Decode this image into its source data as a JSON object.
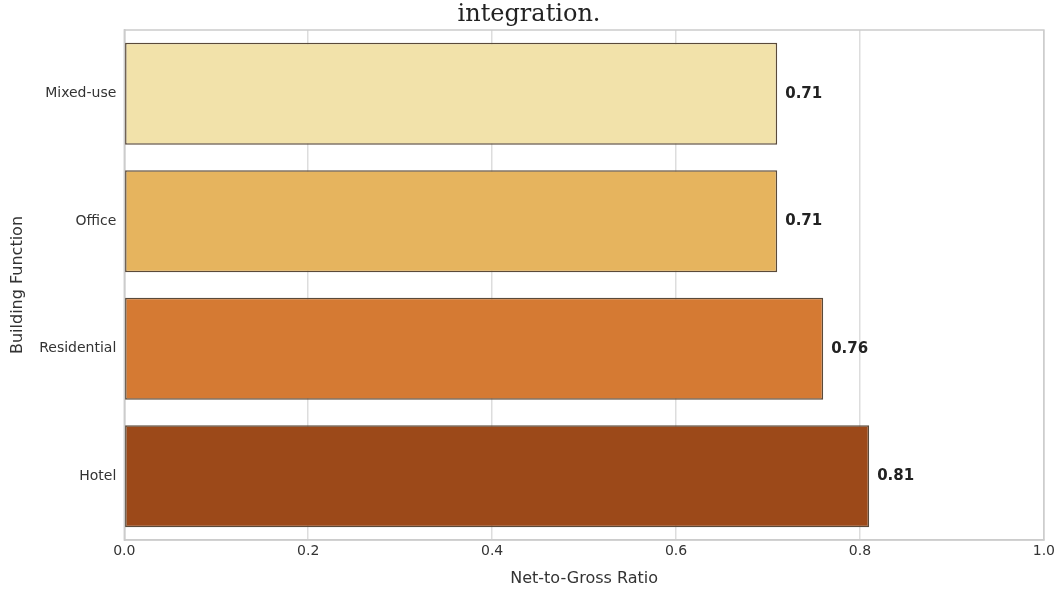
{
  "chart_data": {
    "type": "bar",
    "orientation": "horizontal",
    "title": "integration.",
    "xlabel": "Net-to-Gross Ratio",
    "ylabel": "Building Function",
    "categories": [
      "Mixed-use",
      "Office",
      "Residential",
      "Hotel"
    ],
    "values": [
      0.71,
      0.71,
      0.76,
      0.81
    ],
    "colors": [
      "#f2e2aa",
      "#e6b45e",
      "#d57a33",
      "#9c4919"
    ],
    "xlim": [
      0,
      1
    ],
    "xticks": [
      {
        "value": 0,
        "label": "0.0"
      },
      {
        "value": 0.2,
        "label": "0.2"
      },
      {
        "value": 0.4,
        "label": "0.4"
      },
      {
        "value": 0.6,
        "label": "0.6"
      },
      {
        "value": 0.8,
        "label": "0.8"
      },
      {
        "value": 1,
        "label": "1.0"
      }
    ],
    "grid": "x",
    "legend": false,
    "data_labels": true
  }
}
